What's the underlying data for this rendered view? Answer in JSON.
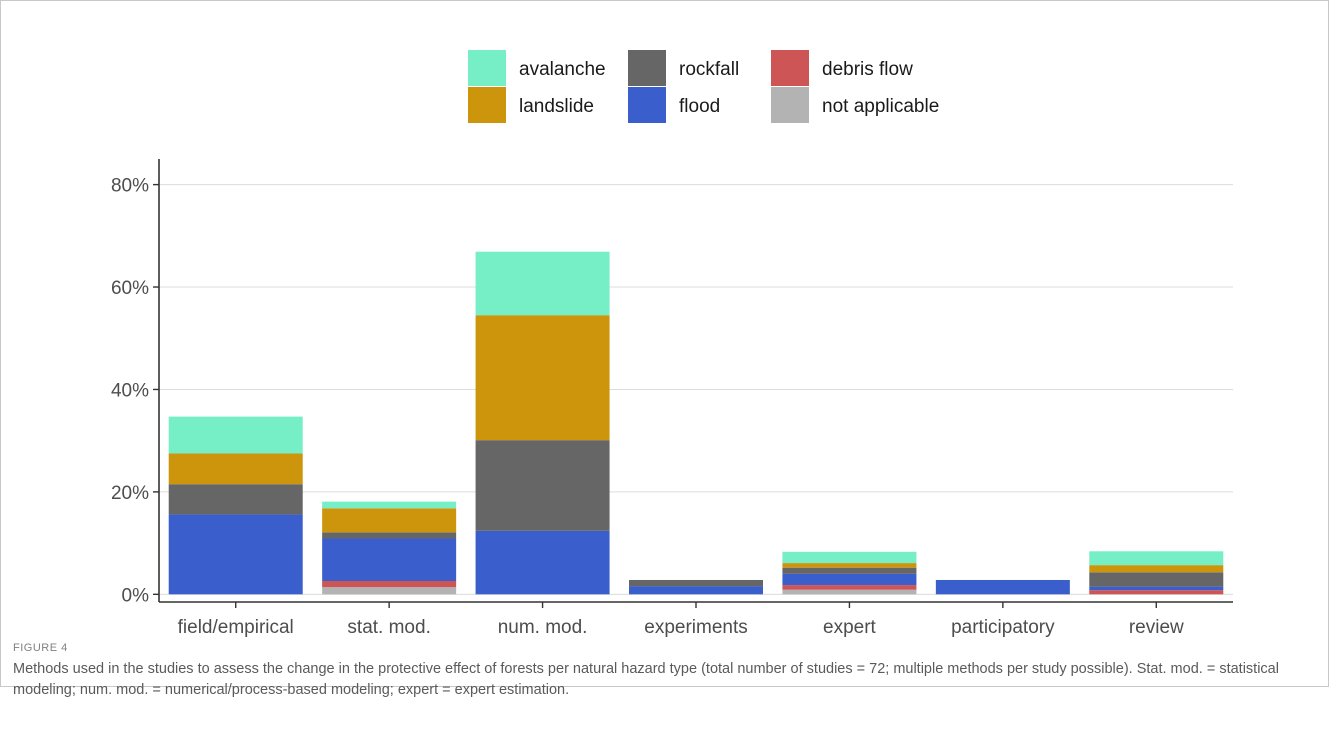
{
  "figure": {
    "label": "FIGURE 4",
    "caption": "Methods used in the studies to assess the change in the protective effect of forests per natural hazard type (total number of studies = 72; multiple methods per study possible). Stat. mod. = statistical modeling; num. mod. = numerical/process-based modeling; expert = expert estimation."
  },
  "chart_data": {
    "type": "bar",
    "stacked": true,
    "categories": [
      "field/empirical",
      "stat. mod.",
      "num. mod.",
      "experiments",
      "expert",
      "participatory",
      "review"
    ],
    "series": [
      {
        "name": "not applicable",
        "color": "#b3b3b3",
        "values": [
          0.0,
          1.4,
          0.0,
          0.0,
          0.9,
          0.0,
          0.0
        ]
      },
      {
        "name": "debris flow",
        "color": "#cd5555",
        "values": [
          0.0,
          1.2,
          0.0,
          0.0,
          0.9,
          0.0,
          0.8
        ]
      },
      {
        "name": "flood",
        "color": "#3a5fcd",
        "values": [
          15.6,
          8.3,
          12.4,
          1.6,
          2.2,
          2.8,
          0.7
        ]
      },
      {
        "name": "rockfall",
        "color": "#666666",
        "values": [
          5.9,
          1.2,
          17.7,
          1.2,
          1.2,
          0.0,
          2.8
        ]
      },
      {
        "name": "landslide",
        "color": "#cd950c",
        "values": [
          6.0,
          4.7,
          24.4,
          0.0,
          0.9,
          0.0,
          1.4
        ]
      },
      {
        "name": "avalanche",
        "color": "#76eec6",
        "values": [
          7.2,
          1.3,
          12.4,
          0.0,
          2.2,
          0.0,
          2.7
        ]
      }
    ],
    "legend_order": [
      "avalanche",
      "rockfall",
      "debris flow",
      "landslide",
      "flood",
      "not applicable"
    ],
    "legend_position": "top",
    "ylim": [
      -1.5,
      85
    ],
    "yticks": [
      0,
      20,
      40,
      60,
      80
    ],
    "ytick_labels": [
      "0%",
      "20%",
      "40%",
      "60%",
      "80%"
    ],
    "grid": "horizontal",
    "xlabel": "",
    "ylabel": "",
    "title": ""
  }
}
